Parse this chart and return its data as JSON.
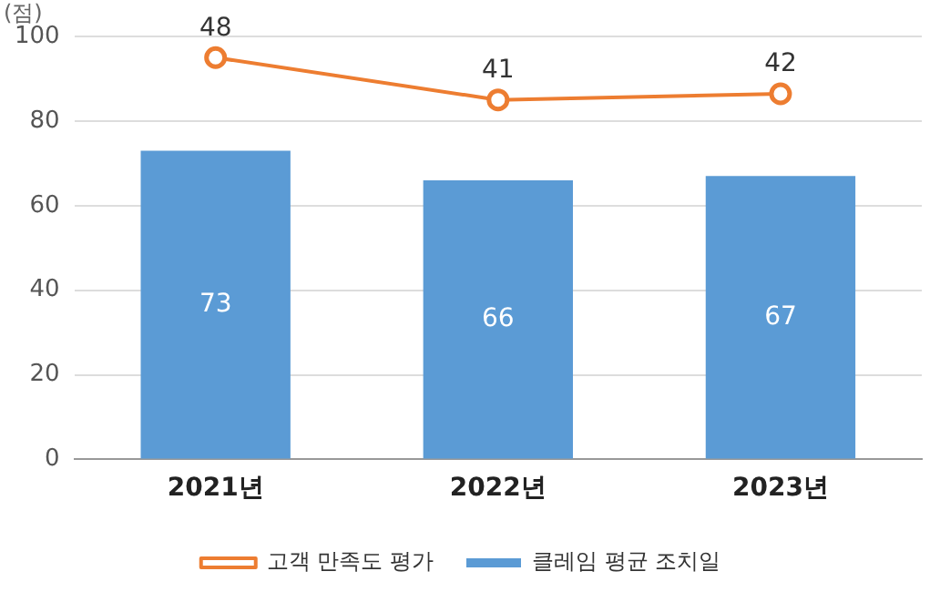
{
  "chart_data": {
    "type": "bar",
    "ylabel": "(점)",
    "categories": [
      "2021년",
      "2022년",
      "2023년"
    ],
    "series": [
      {
        "name": "클레임 평균 조치일",
        "color": "#5b9bd5",
        "values": [
          73,
          66,
          67
        ]
      },
      {
        "name": "고객 만족도 평가",
        "type": "line",
        "axis": "y2",
        "color": "#ed7d31",
        "values": [
          48,
          41,
          42
        ],
        "marker": "circle"
      }
    ],
    "ylim": [
      0,
      100
    ],
    "yticks": [
      0,
      20,
      40,
      60,
      80,
      100
    ],
    "y2lim": [
      -18.5,
      51.5
    ],
    "grid": "y",
    "legend": "bottom",
    "data_labels": true
  }
}
